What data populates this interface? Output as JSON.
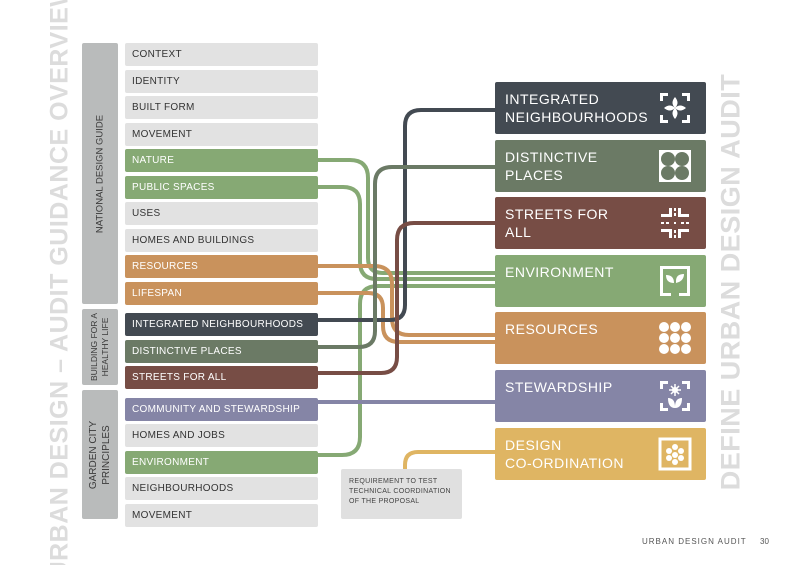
{
  "left_title": "URBAN DESIGN – AUDIT GUIDANCE OVERVIEW",
  "right_title": "DEFINE URBAN DESIGN AUDIT",
  "groups": [
    {
      "label": "NATIONAL DESIGN GUIDE"
    },
    {
      "label": "BUILDING FOR A HEALTHY LIFE"
    },
    {
      "label": "GARDEN CITY PRINCIPLES"
    }
  ],
  "rows": [
    {
      "label": "CONTEXT",
      "color": "#e2e2e2"
    },
    {
      "label": "IDENTITY",
      "color": "#e2e2e2"
    },
    {
      "label": "BUILT FORM",
      "color": "#e2e2e2"
    },
    {
      "label": "MOVEMENT",
      "color": "#e2e2e2"
    },
    {
      "label": "NATURE",
      "color": "#86a974"
    },
    {
      "label": "PUBLIC SPACES",
      "color": "#86a974"
    },
    {
      "label": "USES",
      "color": "#e2e2e2"
    },
    {
      "label": "HOMES AND BUILDINGS",
      "color": "#e2e2e2"
    },
    {
      "label": "RESOURCES",
      "color": "#c9925c"
    },
    {
      "label": "LIFESPAN",
      "color": "#c9925c"
    },
    {
      "label": "INTEGRATED NEIGHBOURHOODS",
      "color": "#434a52"
    },
    {
      "label": "DISTINCTIVE PLACES",
      "color": "#6b7a65"
    },
    {
      "label": "STREETS FOR ALL",
      "color": "#774d45"
    },
    {
      "label": "COMMUNITY AND STEWARDSHIP",
      "color": "#8585a6"
    },
    {
      "label": "HOMES AND JOBS",
      "color": "#e2e2e2"
    },
    {
      "label": "ENVIRONMENT",
      "color": "#86a974"
    },
    {
      "label": "NEIGHBOURHOODS",
      "color": "#e2e2e2"
    },
    {
      "label": "MOVEMENT",
      "color": "#e2e2e2"
    }
  ],
  "audit": [
    {
      "line1": "INTEGRATED",
      "line2": "NEIGHBOURHOODS",
      "color": "#434a52",
      "icon": "flower-icon"
    },
    {
      "line1": "DISTINCTIVE",
      "line2": "PLACES",
      "color": "#6b7a65",
      "icon": "four-circles-icon"
    },
    {
      "line1": "STREETS FOR",
      "line2": "ALL",
      "color": "#774d45",
      "icon": "street-grid-icon"
    },
    {
      "line1": "ENVIRONMENT",
      "line2": "",
      "color": "#86a974",
      "icon": "plant-icon"
    },
    {
      "line1": "RESOURCES",
      "line2": "",
      "color": "#c9925c",
      "icon": "dots-grid-icon"
    },
    {
      "line1": "STEWARDSHIP",
      "line2": "",
      "color": "#8585a6",
      "icon": "sun-flower-icon"
    },
    {
      "line1": "DESIGN",
      "line2": "CO-ORDINATION",
      "color": "#dfb563",
      "icon": "dice-icon"
    }
  ],
  "note": "REQUIREMENT TO TEST TECHNICAL COORDINATION OF THE PROPOSAL",
  "footer": {
    "title": "URBAN DESIGN AUDIT",
    "page": "30"
  }
}
